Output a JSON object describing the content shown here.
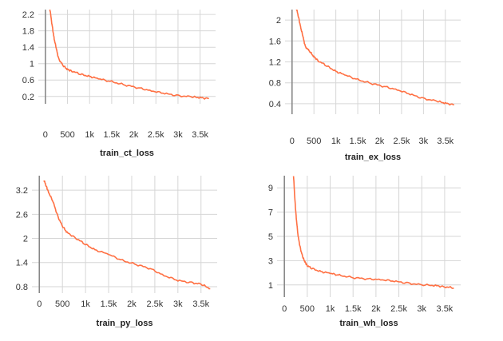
{
  "chart_data": [
    {
      "type": "line",
      "title": "train_ct_loss",
      "xlim": [
        -160,
        3850
      ],
      "ylim": [
        0.02,
        2.32
      ],
      "x_ticks": [
        0,
        500,
        1000,
        1500,
        2000,
        2500,
        3000,
        3500
      ],
      "x_tick_labels": [
        "0",
        "500",
        "1k",
        "1.5k",
        "2k",
        "2.5k",
        "3k",
        "3.5k"
      ],
      "y_ticks": [
        0.2,
        0.6,
        1,
        1.4,
        1.8,
        2.2
      ],
      "y_tick_labels": [
        "0.2",
        "0.6",
        "1",
        "1.4",
        "1.8",
        "2.2"
      ],
      "grid": true,
      "series_color": "#ff7043",
      "series": [
        {
          "x": [
            100,
            150,
            200,
            250,
            300,
            400,
            500,
            600,
            800,
            1000,
            1200,
            1500,
            1800,
            2100,
            2400,
            2700,
            3000,
            3300,
            3500,
            3700
          ],
          "y": [
            2.35,
            1.95,
            1.6,
            1.35,
            1.12,
            0.95,
            0.86,
            0.82,
            0.74,
            0.69,
            0.63,
            0.56,
            0.48,
            0.41,
            0.34,
            0.27,
            0.22,
            0.19,
            0.17,
            0.15
          ]
        }
      ]
    },
    {
      "type": "line",
      "title": "train_ex_loss",
      "xlim": [
        -160,
        3850
      ],
      "ylim": [
        0.2,
        2.2
      ],
      "x_ticks": [
        0,
        500,
        1000,
        1500,
        2000,
        2500,
        3000,
        3500
      ],
      "x_tick_labels": [
        "0",
        "500",
        "1k",
        "1.5k",
        "2k",
        "2.5k",
        "3k",
        "3.5k"
      ],
      "y_ticks": [
        0.4,
        0.8,
        1.2,
        1.6,
        2
      ],
      "y_tick_labels": [
        "0.4",
        "0.8",
        "1.2",
        "1.6",
        "2"
      ],
      "grid": true,
      "series_color": "#ff7043",
      "series": [
        {
          "x": [
            100,
            150,
            200,
            250,
            300,
            400,
            500,
            600,
            800,
            1000,
            1200,
            1500,
            1800,
            2100,
            2400,
            2700,
            3000,
            3300,
            3500,
            3700
          ],
          "y": [
            2.22,
            2.05,
            1.85,
            1.68,
            1.5,
            1.4,
            1.3,
            1.22,
            1.12,
            1.02,
            0.95,
            0.86,
            0.79,
            0.73,
            0.67,
            0.58,
            0.5,
            0.45,
            0.41,
            0.38
          ]
        }
      ]
    },
    {
      "type": "line",
      "title": "train_py_loss",
      "xlim": [
        -160,
        3850
      ],
      "ylim": [
        0.64,
        3.56
      ],
      "x_ticks": [
        0,
        500,
        1000,
        1500,
        2000,
        2500,
        3000,
        3500
      ],
      "x_tick_labels": [
        "0",
        "500",
        "1k",
        "1.5k",
        "2k",
        "2.5k",
        "3k",
        "3.5k"
      ],
      "y_ticks": [
        0.8,
        1.4,
        2,
        2.6,
        3.2
      ],
      "y_tick_labels": [
        "0.8",
        "1.4",
        "2",
        "2.6",
        "3.2"
      ],
      "grid": true,
      "series_color": "#ff7043",
      "series": [
        {
          "x": [
            100,
            150,
            200,
            300,
            400,
            500,
            600,
            800,
            1000,
            1200,
            1500,
            1800,
            2100,
            2400,
            2700,
            3000,
            3300,
            3500,
            3700
          ],
          "y": [
            3.45,
            3.3,
            3.15,
            2.9,
            2.55,
            2.3,
            2.15,
            2.0,
            1.85,
            1.72,
            1.6,
            1.45,
            1.35,
            1.25,
            1.08,
            0.95,
            0.9,
            0.86,
            0.75
          ]
        }
      ]
    },
    {
      "type": "line",
      "title": "train_wh_loss",
      "xlim": [
        -160,
        3850
      ],
      "ylim": [
        0,
        10
      ],
      "x_ticks": [
        0,
        500,
        1000,
        1500,
        2000,
        2500,
        3000,
        3500
      ],
      "x_tick_labels": [
        "0",
        "500",
        "1k",
        "1.5k",
        "2k",
        "2.5k",
        "3k",
        "3.5k"
      ],
      "y_ticks": [
        1,
        3,
        5,
        7,
        9
      ],
      "y_tick_labels": [
        "1",
        "3",
        "5",
        "7",
        "9"
      ],
      "grid": true,
      "series_color": "#ff7043",
      "series": [
        {
          "x": [
            200,
            230,
            260,
            300,
            350,
            400,
            450,
            500,
            600,
            800,
            1000,
            1200,
            1500,
            1800,
            2100,
            2400,
            2700,
            3000,
            3300,
            3500,
            3700
          ],
          "y": [
            10.0,
            8.0,
            6.5,
            5.0,
            4.0,
            3.3,
            2.9,
            2.6,
            2.35,
            2.1,
            1.95,
            1.8,
            1.6,
            1.5,
            1.45,
            1.3,
            1.15,
            1.0,
            0.95,
            0.85,
            0.75
          ]
        }
      ]
    }
  ]
}
